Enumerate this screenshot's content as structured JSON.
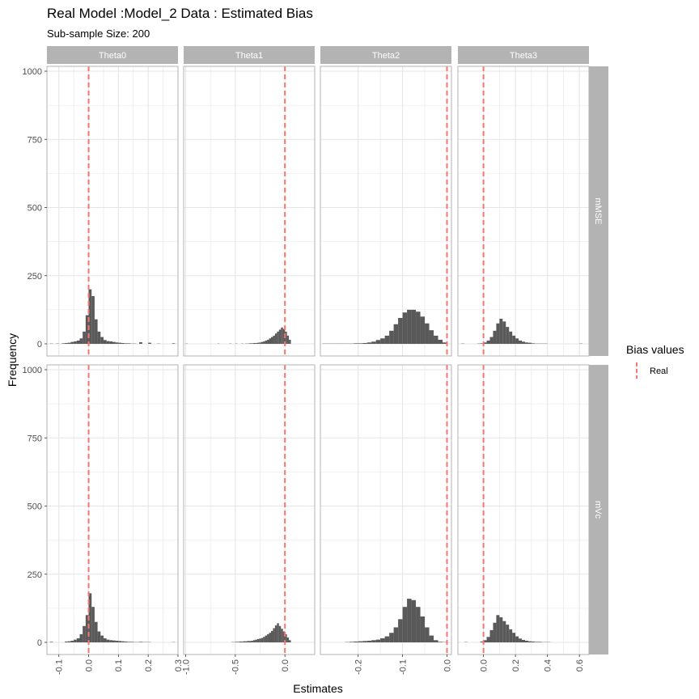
{
  "chart_data": {
    "type": "bar",
    "subtype": "faceted-histogram",
    "title": "Real Model :Model_2 Data : Estimated Bias",
    "subtitle": "Sub-sample Size: 200",
    "xlabel": "Estimates",
    "ylabel": "Frequency",
    "legend": {
      "title": "Bias values",
      "entries": [
        "Real"
      ],
      "position": "right",
      "color": "#f8766d"
    },
    "colors": {
      "bar": "#595959",
      "strip": "#b3b3b3",
      "grid": "#e5e5e5",
      "reference_line": "#f8766d"
    },
    "ylim": [
      0,
      1000
    ],
    "yticks": [
      0,
      250,
      500,
      750,
      1000
    ],
    "columns": [
      {
        "name": "Theta0",
        "xlim": [
          -0.14,
          0.3
        ],
        "xticks": [
          -0.1,
          0.0,
          0.1,
          0.2,
          0.3
        ],
        "xtick_labels": [
          "-0.1",
          "0.0",
          "0.1",
          "0.2",
          "0.3"
        ],
        "real_value": 0.0
      },
      {
        "name": "Theta1",
        "xlim": [
          -1.02,
          0.3
        ],
        "xticks": [
          -1.0,
          -0.5,
          0.0
        ],
        "xtick_labels": [
          "-1.0",
          "-0.5",
          "0.0"
        ],
        "real_value": 0.0
      },
      {
        "name": "Theta2",
        "xlim": [
          -0.285,
          0.01
        ],
        "xticks": [
          -0.2,
          -0.1,
          0.0
        ],
        "xtick_labels": [
          "-0.2",
          "-0.1",
          "0.0"
        ],
        "real_value": 0.0
      },
      {
        "name": "Theta3",
        "xlim": [
          -0.16,
          0.66
        ],
        "xticks": [
          0.0,
          0.2,
          0.4,
          0.6
        ],
        "xtick_labels": [
          "0.0",
          "0.2",
          "0.4",
          "0.6"
        ],
        "real_value": 0.0
      }
    ],
    "rows": [
      {
        "name": "mMSE"
      },
      {
        "name": "mVc"
      }
    ],
    "panels": [
      {
        "row": "mMSE",
        "column": "Theta0",
        "bin_width": 0.01,
        "bin_starts": [
          -0.13,
          -0.12,
          -0.11,
          -0.1,
          -0.09,
          -0.08,
          -0.07,
          -0.06,
          -0.05,
          -0.04,
          -0.03,
          -0.02,
          -0.01,
          0.0,
          0.01,
          0.02,
          0.03,
          0.04,
          0.05,
          0.06,
          0.07,
          0.08,
          0.09,
          0.1,
          0.11,
          0.12,
          0.13,
          0.14,
          0.15,
          0.16,
          0.17,
          0.18,
          0.19,
          0.2,
          0.21,
          0.22,
          0.23,
          0.24,
          0.25,
          0.26,
          0.27,
          0.28
        ],
        "counts": [
          1,
          0,
          1,
          0,
          2,
          3,
          4,
          7,
          9,
          12,
          20,
          45,
          105,
          200,
          175,
          90,
          45,
          25,
          14,
          10,
          9,
          7,
          5,
          4,
          3,
          2,
          2,
          1,
          1,
          0,
          6,
          0,
          0,
          4,
          0,
          0,
          1,
          0,
          0,
          0,
          0,
          2
        ]
      },
      {
        "row": "mMSE",
        "column": "Theta1",
        "bin_width": 0.02,
        "bin_starts": [
          -1.0,
          -0.98,
          -0.96,
          -0.94,
          -0.92,
          -0.9,
          -0.88,
          -0.86,
          -0.84,
          -0.82,
          -0.8,
          -0.78,
          -0.76,
          -0.74,
          -0.72,
          -0.7,
          -0.68,
          -0.66,
          -0.64,
          -0.62,
          -0.6,
          -0.58,
          -0.56,
          -0.54,
          -0.52,
          -0.5,
          -0.48,
          -0.46,
          -0.44,
          -0.42,
          -0.4,
          -0.38,
          -0.36,
          -0.34,
          -0.32,
          -0.3,
          -0.28,
          -0.26,
          -0.24,
          -0.22,
          -0.2,
          -0.18,
          -0.16,
          -0.14,
          -0.12,
          -0.1,
          -0.08,
          -0.06,
          -0.04,
          -0.02,
          0.0,
          0.02,
          0.04
        ],
        "counts": [
          1,
          0,
          0,
          0,
          0,
          0,
          0,
          0,
          0,
          0,
          0,
          0,
          0,
          0,
          0,
          0,
          1,
          0,
          0,
          0,
          0,
          0,
          1,
          0,
          0,
          1,
          0,
          0,
          1,
          0,
          1,
          1,
          2,
          2,
          3,
          3,
          4,
          5,
          7,
          9,
          12,
          15,
          20,
          25,
          30,
          38,
          45,
          52,
          60,
          55,
          45,
          30,
          15
        ]
      },
      {
        "row": "mMSE",
        "column": "Theta2",
        "bin_width": 0.01,
        "bin_starts": [
          -0.28,
          -0.27,
          -0.26,
          -0.25,
          -0.24,
          -0.23,
          -0.22,
          -0.21,
          -0.2,
          -0.19,
          -0.18,
          -0.17,
          -0.16,
          -0.15,
          -0.14,
          -0.13,
          -0.12,
          -0.11,
          -0.1,
          -0.09,
          -0.08,
          -0.07,
          -0.06,
          -0.05,
          -0.04,
          -0.03,
          -0.02,
          -0.01
        ],
        "counts": [
          1,
          1,
          1,
          1,
          1,
          1,
          1,
          2,
          2,
          3,
          5,
          8,
          14,
          20,
          30,
          48,
          72,
          95,
          115,
          125,
          125,
          118,
          100,
          75,
          50,
          30,
          15,
          5
        ]
      },
      {
        "row": "mMSE",
        "column": "Theta3",
        "bin_width": 0.02,
        "bin_starts": [
          -0.14,
          -0.12,
          -0.1,
          -0.08,
          -0.06,
          -0.04,
          -0.02,
          0.0,
          0.02,
          0.04,
          0.06,
          0.08,
          0.1,
          0.12,
          0.14,
          0.16,
          0.18,
          0.2,
          0.22,
          0.24,
          0.26,
          0.28,
          0.3,
          0.32,
          0.34,
          0.36,
          0.38,
          0.4,
          0.42,
          0.44,
          0.46,
          0.48,
          0.5,
          0.52,
          0.54,
          0.56,
          0.58,
          0.6,
          0.62
        ],
        "counts": [
          1,
          0,
          0,
          0,
          0,
          1,
          2,
          5,
          12,
          25,
          48,
          75,
          92,
          82,
          62,
          45,
          30,
          20,
          12,
          8,
          5,
          4,
          2,
          1,
          1,
          1,
          1,
          0,
          0,
          0,
          0,
          0,
          0,
          0,
          0,
          0,
          0,
          1,
          0
        ]
      },
      {
        "row": "mVc",
        "column": "Theta0",
        "bin_width": 0.01,
        "bin_starts": [
          -0.13,
          -0.12,
          -0.11,
          -0.1,
          -0.09,
          -0.08,
          -0.07,
          -0.06,
          -0.05,
          -0.04,
          -0.03,
          -0.02,
          -0.01,
          0.0,
          0.01,
          0.02,
          0.03,
          0.04,
          0.05,
          0.06,
          0.07,
          0.08,
          0.09,
          0.1,
          0.11,
          0.12,
          0.13,
          0.14,
          0.15,
          0.16,
          0.17,
          0.18,
          0.19,
          0.2,
          0.21,
          0.22,
          0.23,
          0.24,
          0.25,
          0.26,
          0.27,
          0.28
        ],
        "counts": [
          2,
          0,
          0,
          0,
          0,
          3,
          4,
          6,
          10,
          15,
          30,
          60,
          100,
          180,
          130,
          75,
          40,
          25,
          15,
          10,
          8,
          7,
          6,
          5,
          4,
          3,
          2,
          2,
          1,
          1,
          2,
          1,
          1,
          1,
          0,
          0,
          0,
          0,
          0,
          0,
          0,
          1
        ]
      },
      {
        "row": "mVc",
        "column": "Theta1",
        "bin_width": 0.02,
        "bin_starts": [
          -1.0,
          -0.98,
          -0.96,
          -0.94,
          -0.92,
          -0.9,
          -0.88,
          -0.86,
          -0.84,
          -0.82,
          -0.8,
          -0.78,
          -0.76,
          -0.74,
          -0.72,
          -0.7,
          -0.68,
          -0.66,
          -0.64,
          -0.62,
          -0.6,
          -0.58,
          -0.56,
          -0.54,
          -0.52,
          -0.5,
          -0.48,
          -0.46,
          -0.44,
          -0.42,
          -0.4,
          -0.38,
          -0.36,
          -0.34,
          -0.32,
          -0.3,
          -0.28,
          -0.26,
          -0.24,
          -0.22,
          -0.2,
          -0.18,
          -0.16,
          -0.14,
          -0.12,
          -0.1,
          -0.08,
          -0.06,
          -0.04,
          -0.02,
          0.0,
          0.02,
          0.04
        ],
        "counts": [
          0,
          0,
          0,
          0,
          0,
          0,
          0,
          0,
          0,
          0,
          0,
          0,
          0,
          0,
          0,
          0,
          0,
          0,
          0,
          0,
          0,
          0,
          0,
          1,
          1,
          2,
          2,
          3,
          3,
          4,
          4,
          5,
          5,
          6,
          8,
          10,
          12,
          14,
          16,
          20,
          25,
          30,
          35,
          42,
          52,
          62,
          70,
          60,
          50,
          40,
          30,
          18,
          8
        ]
      },
      {
        "row": "mVc",
        "column": "Theta2",
        "bin_width": 0.01,
        "bin_starts": [
          -0.28,
          -0.27,
          -0.26,
          -0.25,
          -0.24,
          -0.23,
          -0.22,
          -0.21,
          -0.2,
          -0.19,
          -0.18,
          -0.17,
          -0.16,
          -0.15,
          -0.14,
          -0.13,
          -0.12,
          -0.11,
          -0.1,
          -0.09,
          -0.08,
          -0.07,
          -0.06,
          -0.05,
          -0.04,
          -0.03,
          -0.02,
          -0.01
        ],
        "counts": [
          0,
          0,
          0,
          0,
          0,
          1,
          2,
          3,
          4,
          5,
          6,
          8,
          10,
          15,
          22,
          35,
          55,
          85,
          130,
          160,
          155,
          130,
          95,
          55,
          25,
          8,
          2,
          1
        ]
      },
      {
        "row": "mVc",
        "column": "Theta3",
        "bin_width": 0.02,
        "bin_starts": [
          -0.14,
          -0.12,
          -0.1,
          -0.08,
          -0.06,
          -0.04,
          -0.02,
          0.0,
          0.02,
          0.04,
          0.06,
          0.08,
          0.1,
          0.12,
          0.14,
          0.16,
          0.18,
          0.2,
          0.22,
          0.24,
          0.26,
          0.28,
          0.3,
          0.32,
          0.34,
          0.36,
          0.38,
          0.4,
          0.42,
          0.44,
          0.46,
          0.48,
          0.5,
          0.52,
          0.54,
          0.56,
          0.58,
          0.6,
          0.62
        ],
        "counts": [
          0,
          1,
          0,
          0,
          0,
          0,
          3,
          8,
          20,
          45,
          72,
          100,
          92,
          78,
          65,
          48,
          35,
          22,
          14,
          9,
          6,
          4,
          3,
          2,
          2,
          1,
          1,
          1,
          0,
          0,
          0,
          0,
          0,
          0,
          0,
          0,
          0,
          0,
          0
        ]
      }
    ]
  }
}
